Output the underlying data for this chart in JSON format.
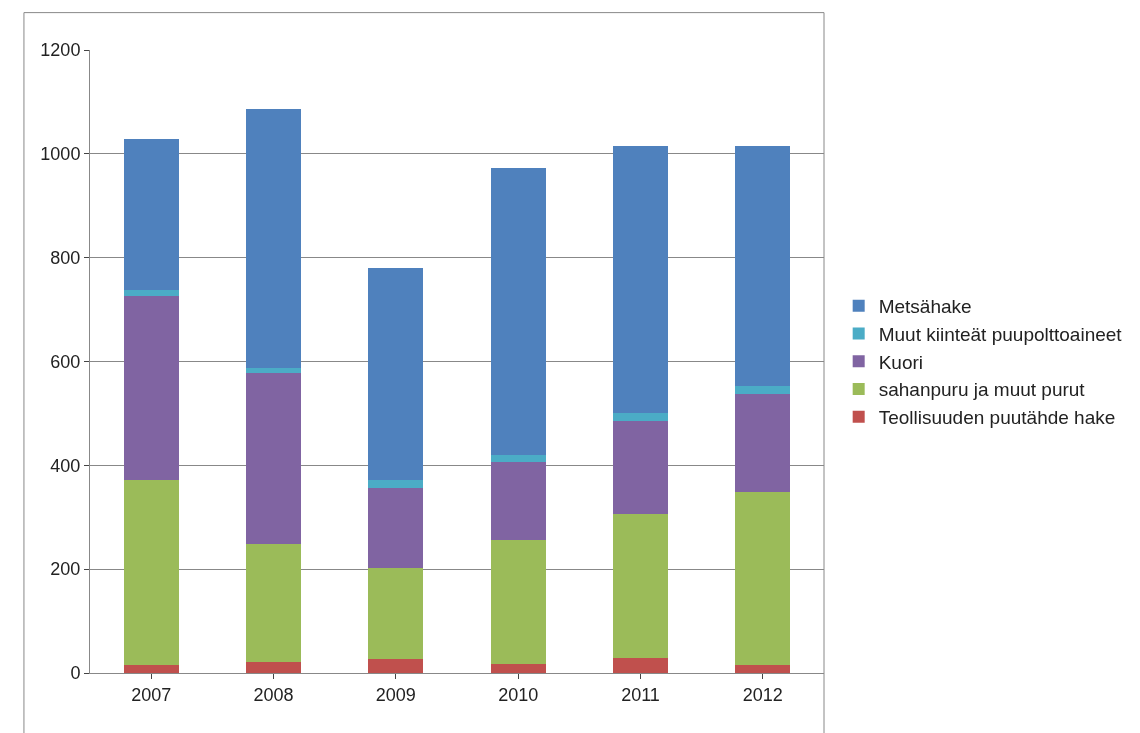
{
  "chart_data": {
    "type": "bar",
    "stacked": true,
    "categories": [
      "2007",
      "2008",
      "2009",
      "2010",
      "2011",
      "2012"
    ],
    "series": [
      {
        "name": "Teollisuuden puutähde hake",
        "color": "#c0504d",
        "values": [
          16,
          22,
          27,
          18,
          29,
          16
        ]
      },
      {
        "name": "sahanpuru ja muut purut",
        "color": "#9bbb59",
        "values": [
          355,
          226,
          176,
          238,
          278,
          332
        ]
      },
      {
        "name": "Kuori",
        "color": "#8064a2",
        "values": [
          356,
          330,
          154,
          150,
          179,
          189
        ]
      },
      {
        "name": "Muut kiinteät puupolttoaineet",
        "color": "#4bacc6",
        "values": [
          11,
          10,
          14,
          14,
          14,
          16
        ]
      },
      {
        "name": "Metsähake",
        "color": "#4f81bd",
        "values": [
          291,
          498,
          410,
          553,
          516,
          463
        ]
      }
    ],
    "ylim": [
      0,
      1200
    ],
    "yticks": [
      0,
      200,
      400,
      600,
      800,
      1000,
      1200
    ],
    "grid": "y",
    "legend": "right"
  }
}
